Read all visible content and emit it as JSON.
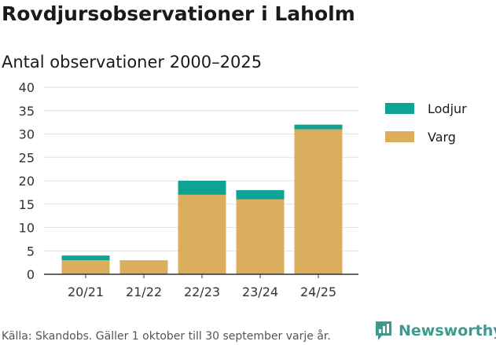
{
  "title": "Rovdjursobservationer i Laholm",
  "subtitle": "Antal observationer 2000–2025",
  "footer": "Källa: Skandobs. Gäller 1 oktober till 30 september varje år.",
  "brand": "Newsworthy",
  "colors": {
    "lodjur": "#0fa396",
    "varg": "#dbae5d",
    "brand": "#3d9a8e"
  },
  "chart_data": {
    "type": "bar",
    "stacked": true,
    "title": "Antal observationer 2000–2025",
    "xlabel": "",
    "ylabel": "",
    "categories": [
      "20/21",
      "21/22",
      "22/23",
      "23/24",
      "24/25"
    ],
    "series": [
      {
        "name": "Varg",
        "color": "#dbae5d",
        "values": [
          3,
          3,
          17,
          16,
          31
        ]
      },
      {
        "name": "Lodjur",
        "color": "#0fa396",
        "values": [
          1,
          0,
          3,
          2,
          1
        ]
      }
    ],
    "legend": [
      "Lodjur",
      "Varg"
    ],
    "legend_position": "right",
    "ylim": [
      0,
      40
    ],
    "yticks": [
      0,
      5,
      10,
      15,
      20,
      25,
      30,
      35,
      40
    ],
    "grid": true
  }
}
